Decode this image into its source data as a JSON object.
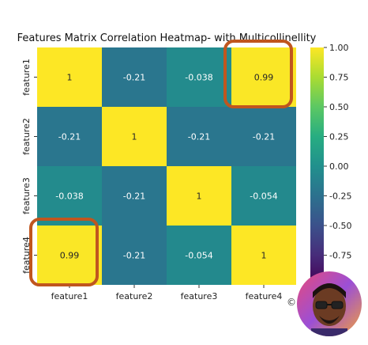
{
  "chart_data": {
    "type": "heatmap",
    "title": "Features Matrix Correlation Heatmap- with Multicollinellity",
    "categories": [
      "feature1",
      "feature2",
      "feature3",
      "feature4"
    ],
    "matrix": [
      [
        1,
        -0.21,
        -0.038,
        0.99
      ],
      [
        -0.21,
        1,
        -0.21,
        -0.21
      ],
      [
        -0.038,
        -0.21,
        1,
        -0.054
      ],
      [
        0.99,
        -0.21,
        -0.054,
        1
      ]
    ],
    "labels": [
      [
        "1",
        "-0.21",
        "-0.038",
        "0.99"
      ],
      [
        "-0.21",
        "1",
        "-0.21",
        "-0.21"
      ],
      [
        "-0.038",
        "-0.21",
        "1",
        "-0.054"
      ],
      [
        "0.99",
        "-0.21",
        "-0.054",
        "1"
      ]
    ],
    "colorbar": {
      "range": [
        -1,
        1
      ],
      "ticks": [
        "1.00",
        "0.75",
        "0.50",
        "0.25",
        "0.00",
        "-0.25",
        "-0.50",
        "-0.75",
        "-1.00"
      ],
      "tick_values": [
        1,
        0.75,
        0.5,
        0.25,
        0,
        -0.25,
        -0.5,
        -0.75,
        -1
      ]
    },
    "colormap": "viridis",
    "highlight_cells": [
      [
        0,
        3
      ],
      [
        3,
        0
      ]
    ],
    "highlight_color": "#c0561e"
  },
  "watermark": {
    "symbol": "©"
  }
}
